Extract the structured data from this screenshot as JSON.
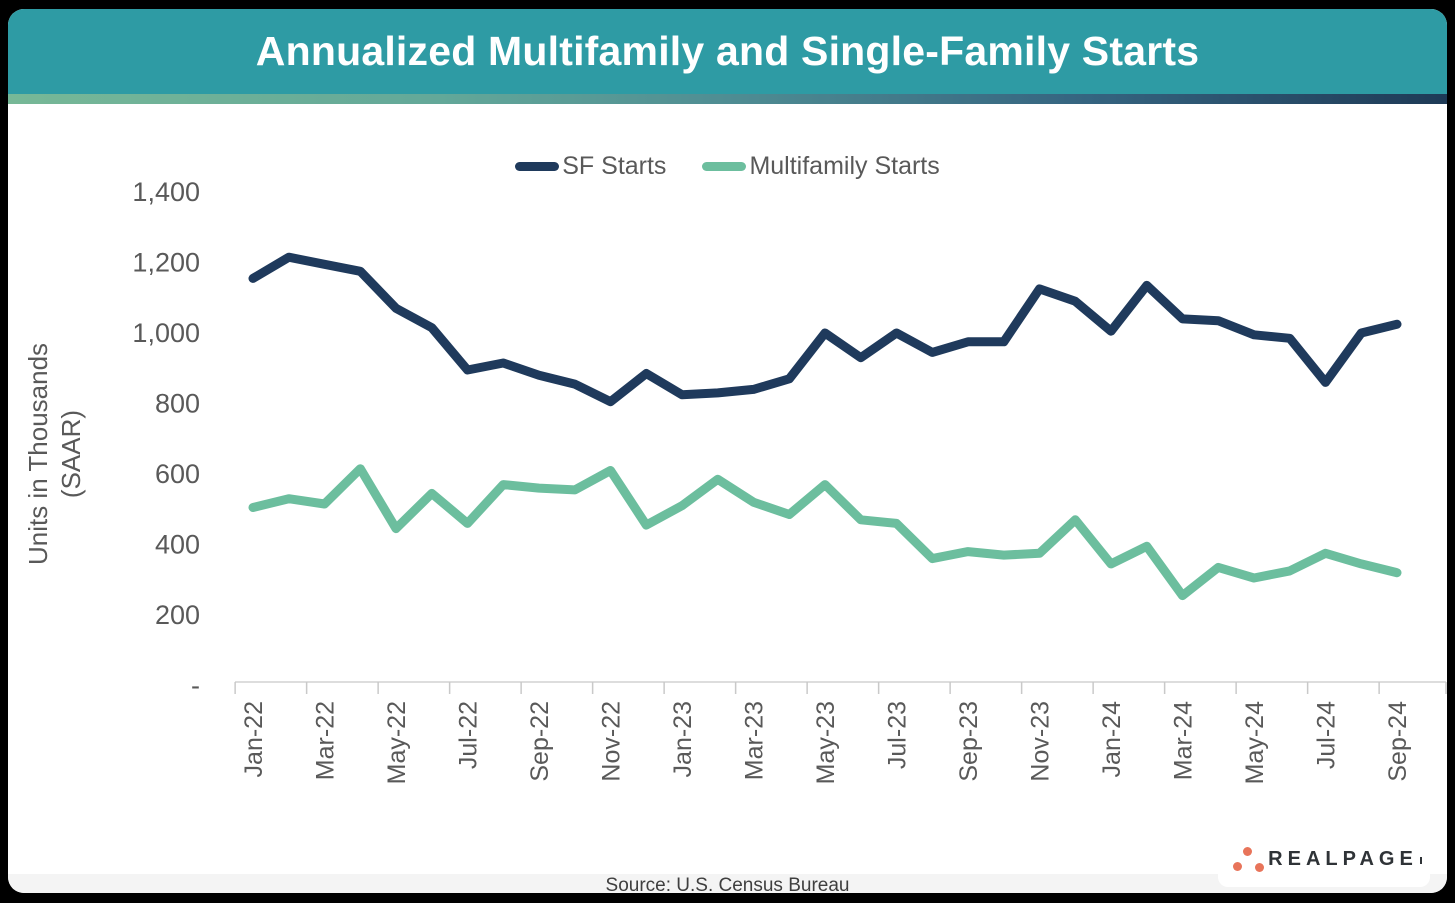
{
  "header": {
    "title": "Annualized Multifamily and Single-Family Starts",
    "bar_color": "#2E9BA4",
    "gradient_colors": [
      "#77B897",
      "#4F8D93",
      "#1E3A56"
    ]
  },
  "chart_data": {
    "type": "line",
    "title": "Annualized Multifamily and Single-Family Starts",
    "ylabel": "Units in Thousands (SAAR)",
    "ylabel_lines": [
      "Units in Thousands",
      "(SAAR)"
    ],
    "xlabel": "",
    "ylim": [
      0,
      1400
    ],
    "ytick_step": 200,
    "ytick_labels": [
      "-",
      "200",
      "400",
      "600",
      "800",
      "1,000",
      "1,200",
      "1,400"
    ],
    "grid": false,
    "legend_position": "top-center",
    "x_label_every": 2,
    "x": [
      "Jan-22",
      "Feb-22",
      "Mar-22",
      "Apr-22",
      "May-22",
      "Jun-22",
      "Jul-22",
      "Aug-22",
      "Sep-22",
      "Oct-22",
      "Nov-22",
      "Dec-22",
      "Jan-23",
      "Feb-23",
      "Mar-23",
      "Apr-23",
      "May-23",
      "Jun-23",
      "Jul-23",
      "Aug-23",
      "Sep-23",
      "Oct-23",
      "Nov-23",
      "Dec-23",
      "Jan-24",
      "Feb-24",
      "Mar-24",
      "Apr-24",
      "May-24",
      "Jun-24",
      "Jul-24",
      "Aug-24",
      "Sep-24"
    ],
    "series": [
      {
        "name": "SF Starts",
        "color": "#1F3A5C",
        "values": [
          1155,
          1215,
          1195,
          1175,
          1070,
          1015,
          895,
          915,
          880,
          855,
          805,
          885,
          825,
          830,
          840,
          870,
          1000,
          930,
          1000,
          945,
          975,
          975,
          1125,
          1090,
          1005,
          1135,
          1040,
          1035,
          995,
          985,
          860,
          1000,
          1025
        ]
      },
      {
        "name": "Multifamily Starts",
        "color": "#6CBE9E",
        "values": [
          505,
          530,
          515,
          615,
          445,
          545,
          460,
          570,
          560,
          555,
          610,
          455,
          510,
          585,
          520,
          485,
          570,
          470,
          460,
          360,
          380,
          370,
          375,
          470,
          345,
          395,
          255,
          335,
          305,
          325,
          375,
          345,
          320
        ]
      }
    ]
  },
  "footer": {
    "source": "Source: U.S. Census Bureau"
  },
  "logo": {
    "text": "REALPAGE",
    "dot_color": "#E8745A",
    "text_color": "#2F3337"
  }
}
